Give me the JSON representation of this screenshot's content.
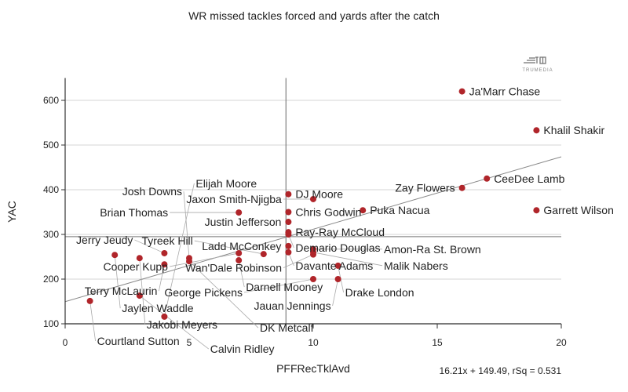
{
  "chart_data": {
    "type": "scatter",
    "title": "WR missed tackles forced and yards after the catch",
    "xlabel": "PFFRecTklAvd",
    "ylabel": "YAC",
    "xlim": [
      0,
      20
    ],
    "ylim": [
      100,
      650
    ],
    "xticks": [
      0,
      5,
      10,
      15,
      20
    ],
    "yticks": [
      100,
      200,
      300,
      400,
      500,
      600
    ],
    "grid": "horizontal",
    "mean_x": 8.9,
    "mean_y": 295,
    "trendline": {
      "slope": 16.21,
      "intercept": 149.49,
      "label": "16.21x + 149.49, rSq = 0.531"
    },
    "point_color": "#b0252a",
    "logo": "TRUMEDIA",
    "points": [
      {
        "name": "Ja'Marr Chase",
        "x": 16,
        "y": 620
      },
      {
        "name": "Khalil Shakir",
        "x": 19,
        "y": 533
      },
      {
        "name": "CeeDee Lamb",
        "x": 17,
        "y": 425
      },
      {
        "name": "Zay Flowers",
        "x": 16,
        "y": 404
      },
      {
        "name": "Garrett Wilson",
        "x": 19,
        "y": 354
      },
      {
        "name": "Puka Nacua",
        "x": 12,
        "y": 354
      },
      {
        "name": "DJ Moore",
        "x": 9,
        "y": 390
      },
      {
        "name": "Jaxon Smith-Njigba",
        "x": 10,
        "y": 379
      },
      {
        "name": "Brian Thomas",
        "x": 7,
        "y": 349
      },
      {
        "name": "Chris Godwin",
        "x": 9,
        "y": 350
      },
      {
        "name": "Justin Jefferson",
        "x": 9,
        "y": 328
      },
      {
        "name": "Ray-Ray McCloud",
        "x": 9,
        "y": 305
      },
      {
        "name": "Demario Douglas",
        "x": 9,
        "y": 300
      },
      {
        "name": "Ladd McConkey",
        "x": 9,
        "y": 274
      },
      {
        "name": "Amon-Ra St. Brown",
        "x": 10,
        "y": 267
      },
      {
        "name": "Davante Adams",
        "x": 9,
        "y": 260
      },
      {
        "name": "Malik Nabers",
        "x": 10,
        "y": 260
      },
      {
        "name": "Wan'Dale Robinson",
        "x": 10,
        "y": 255
      },
      {
        "name": "Tyreek Hill",
        "x": 8,
        "y": 256
      },
      {
        "name": "Cooper Kupp",
        "x": 7,
        "y": 258
      },
      {
        "name": "Darnell Mooney",
        "x": 7,
        "y": 242
      },
      {
        "name": "Drake London",
        "x": 11,
        "y": 230
      },
      {
        "name": "George Pickens",
        "x": 10,
        "y": 200
      },
      {
        "name": "Jauan Jennings",
        "x": 11,
        "y": 200
      },
      {
        "name": "Jaylen Waddle",
        "x": 2,
        "y": 254
      },
      {
        "name": "Jakobi Meyers",
        "x": 3,
        "y": 247
      },
      {
        "name": "Jerry Jeudy",
        "x": 4,
        "y": 258
      },
      {
        "name": "Terry McLaurin",
        "x": 4,
        "y": 233
      },
      {
        "name": "Josh Downs",
        "x": 5,
        "y": 247
      },
      {
        "name": "DK Metcalf",
        "x": 5,
        "y": 240
      },
      {
        "name": "Calvin Ridley",
        "x": 3,
        "y": 163
      },
      {
        "name": "Courtland Sutton",
        "x": 1,
        "y": 151
      },
      {
        "name": "Elijah Moore",
        "x": 4,
        "y": 116
      }
    ]
  }
}
